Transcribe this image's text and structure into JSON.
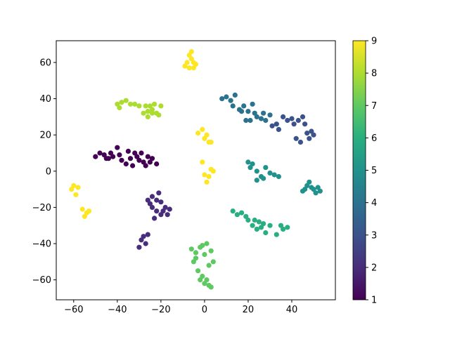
{
  "chart_data": {
    "type": "scatter",
    "title": "",
    "xlabel": "",
    "ylabel": "",
    "xlim": [
      -68,
      60
    ],
    "ylim": [
      -71,
      72
    ],
    "x_ticks": [
      -60,
      -40,
      -20,
      0,
      20,
      40
    ],
    "x_tick_labels": [
      "−60",
      "−40",
      "−20",
      "0",
      "20",
      "40"
    ],
    "y_ticks": [
      -60,
      -40,
      -20,
      0,
      20,
      40,
      60
    ],
    "y_tick_labels": [
      "−60",
      "−40",
      "−20",
      "0",
      "20",
      "40",
      "60"
    ],
    "grid": false,
    "colormap": "viridis",
    "colorbar": {
      "min": 1,
      "max": 9,
      "ticks": [
        1,
        2,
        3,
        4,
        5,
        6,
        7,
        8,
        9
      ],
      "tick_labels": [
        "1",
        "2",
        "3",
        "4",
        "5",
        "6",
        "7",
        "8",
        "9"
      ]
    },
    "clusters": [
      {
        "value": 1,
        "points": [
          [
            -50,
            8
          ],
          [
            -48,
            10
          ],
          [
            -46,
            9
          ],
          [
            -44,
            7
          ],
          [
            -42,
            8
          ],
          [
            -40,
            13
          ],
          [
            -38,
            6
          ],
          [
            -36,
            4
          ],
          [
            -34,
            7
          ],
          [
            -32,
            10
          ],
          [
            -30,
            6
          ],
          [
            -28,
            5
          ],
          [
            -26,
            8
          ],
          [
            -24,
            7
          ],
          [
            -22,
            4
          ],
          [
            -45,
            7
          ],
          [
            -43,
            10
          ],
          [
            -39,
            9
          ],
          [
            -35,
            11
          ],
          [
            -33,
            3
          ],
          [
            -31,
            8
          ],
          [
            -29,
            10
          ],
          [
            -27,
            3
          ],
          [
            -25,
            5
          ]
        ]
      },
      {
        "value": 2,
        "points": [
          [
            -30,
            -42
          ],
          [
            -29,
            -38
          ],
          [
            -28,
            -36
          ],
          [
            -27,
            -40
          ],
          [
            -26,
            -35
          ],
          [
            -25,
            -18
          ],
          [
            -24,
            -14
          ],
          [
            -23,
            -26
          ],
          [
            -22,
            -22
          ],
          [
            -21,
            -12
          ],
          [
            -20,
            -17
          ],
          [
            -19,
            -22
          ],
          [
            -18,
            -20
          ],
          [
            -17,
            -24
          ],
          [
            -16,
            -21
          ],
          [
            -26,
            -16
          ],
          [
            -24,
            -20
          ],
          [
            -22,
            -16
          ],
          [
            -20,
            -24
          ]
        ]
      },
      {
        "value": 3,
        "points": [
          [
            31,
            25
          ],
          [
            33,
            26
          ],
          [
            34,
            23
          ],
          [
            36,
            30
          ],
          [
            38,
            28
          ],
          [
            40,
            29
          ],
          [
            42,
            18
          ],
          [
            44,
            16
          ],
          [
            46,
            26
          ],
          [
            47,
            21
          ],
          [
            48,
            18
          ],
          [
            49,
            22
          ],
          [
            50,
            20
          ],
          [
            43,
            28
          ],
          [
            45,
            30
          ],
          [
            41,
            26
          ]
        ]
      },
      {
        "value": 4,
        "points": [
          [
            8,
            40
          ],
          [
            10,
            41
          ],
          [
            12,
            39
          ],
          [
            14,
            42
          ],
          [
            16,
            34
          ],
          [
            18,
            36
          ],
          [
            20,
            33
          ],
          [
            22,
            37
          ],
          [
            24,
            30
          ],
          [
            26,
            29
          ],
          [
            28,
            28
          ],
          [
            30,
            31
          ],
          [
            19,
            28
          ],
          [
            21,
            28
          ],
          [
            13,
            36
          ],
          [
            17,
            33
          ],
          [
            23,
            32
          ],
          [
            27,
            32
          ]
        ]
      },
      {
        "value": 5,
        "points": [
          [
            20,
            5
          ],
          [
            21,
            2
          ],
          [
            22,
            4
          ],
          [
            24,
            0
          ],
          [
            26,
            -3
          ],
          [
            28,
            2
          ],
          [
            30,
            -1
          ],
          [
            32,
            -2
          ],
          [
            34,
            -3
          ],
          [
            24,
            -5
          ],
          [
            27,
            -4
          ],
          [
            45,
            -11
          ],
          [
            47,
            -8
          ],
          [
            48,
            -6
          ],
          [
            50,
            -10
          ],
          [
            51,
            -12
          ],
          [
            52,
            -9
          ],
          [
            53,
            -11
          ],
          [
            49,
            -9
          ],
          [
            46,
            -10
          ]
        ]
      },
      {
        "value": 6,
        "points": [
          [
            13,
            -22
          ],
          [
            15,
            -24
          ],
          [
            17,
            -23
          ],
          [
            19,
            -25
          ],
          [
            20,
            -27
          ],
          [
            22,
            -30
          ],
          [
            24,
            -32
          ],
          [
            25,
            -28
          ],
          [
            26,
            -31
          ],
          [
            28,
            -34
          ],
          [
            30,
            -30
          ],
          [
            33,
            -35
          ],
          [
            35,
            -30
          ],
          [
            36,
            -32
          ],
          [
            38,
            -31
          ],
          [
            23,
            -27
          ],
          [
            27,
            -29
          ]
        ]
      },
      {
        "value": 7,
        "points": [
          [
            -6,
            -43
          ],
          [
            -4,
            -45
          ],
          [
            -2,
            -42
          ],
          [
            -5,
            -50
          ],
          [
            -3,
            -55
          ],
          [
            -4,
            -48
          ],
          [
            -1,
            -58
          ],
          [
            0,
            -62
          ],
          [
            1,
            -60
          ],
          [
            2,
            -63
          ],
          [
            3,
            -64
          ],
          [
            4,
            -50
          ],
          [
            3,
            -44
          ],
          [
            1,
            -40
          ],
          [
            -1,
            -41
          ],
          [
            0,
            -46
          ],
          [
            2,
            -52
          ],
          [
            -2,
            -60
          ]
        ]
      },
      {
        "value": 8,
        "points": [
          [
            -40,
            37
          ],
          [
            -38,
            38
          ],
          [
            -36,
            39
          ],
          [
            -39,
            35
          ],
          [
            -34,
            37
          ],
          [
            -32,
            37
          ],
          [
            -30,
            36
          ],
          [
            -28,
            32
          ],
          [
            -26,
            33
          ],
          [
            -25,
            36
          ],
          [
            -24,
            34
          ],
          [
            -23,
            37
          ],
          [
            -22,
            32
          ],
          [
            -20,
            36
          ],
          [
            -27,
            36
          ],
          [
            -26,
            30
          ],
          [
            -24,
            32
          ],
          [
            -21,
            31
          ]
        ]
      },
      {
        "value": 9,
        "points": [
          [
            -8,
            60
          ],
          [
            -7,
            64
          ],
          [
            -6,
            62
          ],
          [
            -5,
            57
          ],
          [
            -4,
            59
          ],
          [
            -9,
            58
          ],
          [
            -7,
            57
          ],
          [
            -6,
            66
          ],
          [
            -5,
            60
          ],
          [
            -3,
            21
          ],
          [
            -1,
            23
          ],
          [
            0,
            18
          ],
          [
            1,
            20
          ],
          [
            2,
            16
          ],
          [
            3,
            16
          ],
          [
            -1,
            5
          ],
          [
            0,
            -2
          ],
          [
            1,
            -6
          ],
          [
            2,
            -3
          ],
          [
            3,
            1
          ],
          [
            4,
            0
          ],
          [
            -61,
            -10
          ],
          [
            -60,
            -8
          ],
          [
            -59,
            -13
          ],
          [
            -58,
            -9
          ],
          [
            -56,
            -21
          ],
          [
            -55,
            -25
          ],
          [
            -54,
            -23
          ],
          [
            -53,
            -22
          ]
        ]
      }
    ]
  }
}
